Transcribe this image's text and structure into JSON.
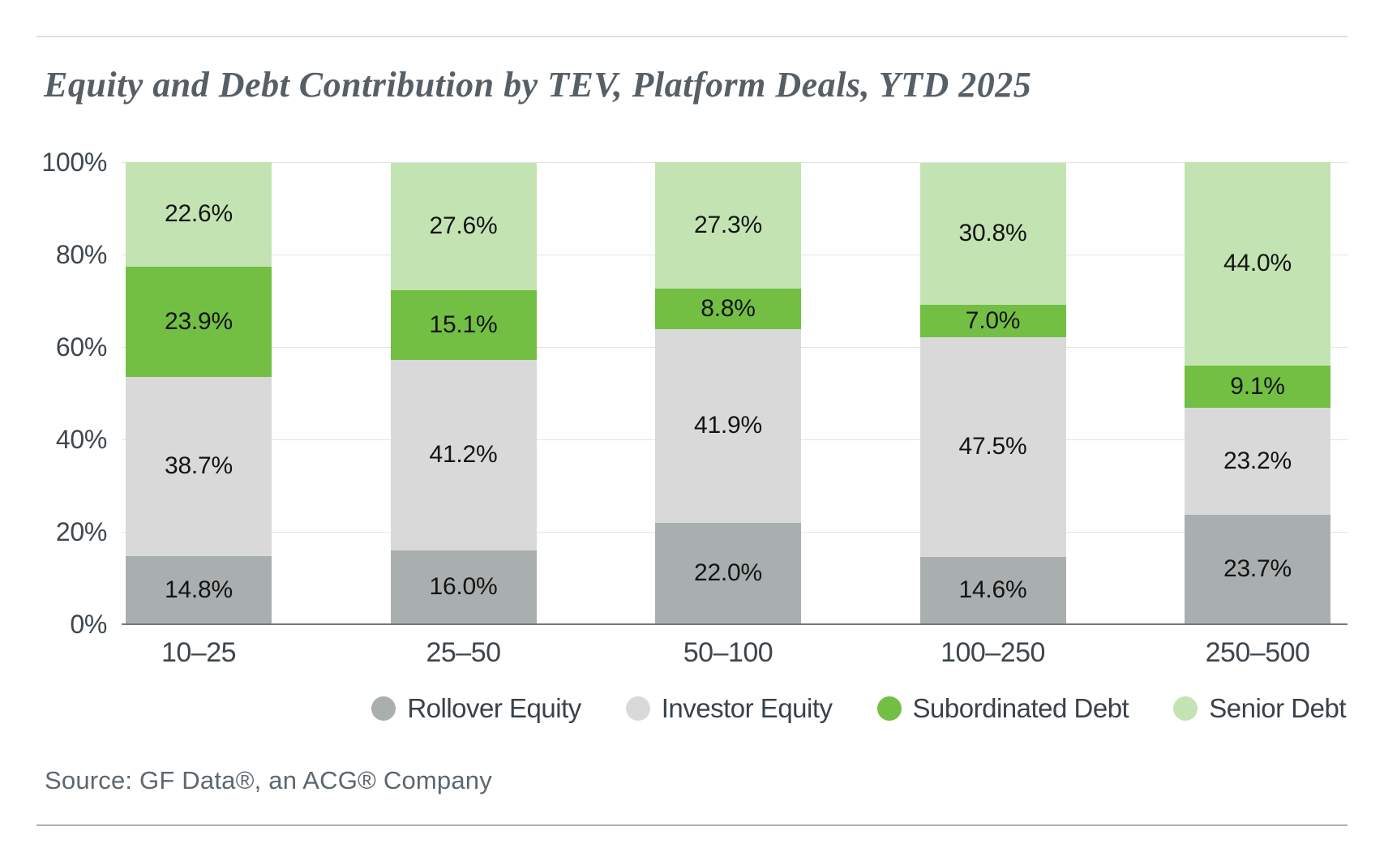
{
  "title": "Equity and Debt Contribution by TEV, Platform Deals, YTD 2025",
  "source": "Source: GF Data®, an ACG® Company",
  "chart_data": {
    "type": "bar",
    "variant": "stacked-100-percent-column",
    "title": "Equity and Debt Contribution by TEV, Platform Deals, YTD 2025",
    "categories": [
      "10–25",
      "25–50",
      "50–100",
      "100–250",
      "250–500"
    ],
    "series": [
      {
        "name": "Rollover Equity",
        "color": "#a9aeae",
        "values": [
          14.8,
          16.0,
          22.0,
          14.6,
          23.7
        ]
      },
      {
        "name": "Investor Equity",
        "color": "#d9d9d9",
        "values": [
          38.7,
          41.2,
          41.9,
          47.5,
          23.2
        ]
      },
      {
        "name": "Subordinated Debt",
        "color": "#72bf44",
        "values": [
          23.9,
          15.1,
          8.8,
          7.0,
          9.1
        ]
      },
      {
        "name": "Senior Debt",
        "color": "#c3e4b2",
        "values": [
          22.6,
          27.6,
          27.3,
          30.8,
          44.0
        ]
      }
    ],
    "xlabel": "",
    "ylabel": "",
    "ylim": [
      0,
      100
    ],
    "yticks": [
      0,
      20,
      40,
      60,
      80,
      100
    ],
    "ytick_suffix": "%",
    "value_label_format": "one-decimal",
    "value_suffix": "%",
    "grid": true,
    "legend_position": "bottom"
  },
  "colors": {
    "title_text": "#575f66",
    "axis_text": "#3e474d",
    "value_label_text": "#141414",
    "grid_line": "#e4e4e4",
    "axis_baseline": "#737b7b",
    "divider_top": "#dedede",
    "divider_bottom": "#b2b2b2",
    "source_text": "#5d676e",
    "background": "#ffffff"
  }
}
